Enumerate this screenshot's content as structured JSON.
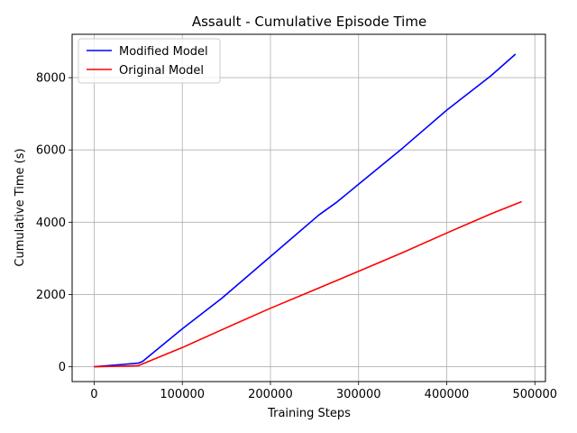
{
  "chart_data": {
    "type": "line",
    "title": "Assault - Cumulative Episode Time",
    "xlabel": "Training Steps",
    "ylabel": "Cumulative Time (s)",
    "xlim": [
      -25000,
      512000
    ],
    "ylim": [
      -410,
      9200
    ],
    "xticks": [
      0,
      100000,
      200000,
      300000,
      400000,
      500000
    ],
    "xtick_labels": [
      "0",
      "100000",
      "200000",
      "300000",
      "400000",
      "500000"
    ],
    "yticks": [
      0,
      2000,
      4000,
      6000,
      8000
    ],
    "ytick_labels": [
      "0",
      "2000",
      "4000",
      "6000",
      "8000"
    ],
    "grid": true,
    "legend_position": "top-left",
    "series": [
      {
        "name": "Modified Model",
        "color": "#0000ff",
        "x": [
          0,
          50000,
          55000,
          100000,
          145000,
          200000,
          255000,
          275000,
          300000,
          350000,
          400000,
          450000,
          478000
        ],
        "y": [
          0,
          100,
          150,
          1050,
          1900,
          3050,
          4200,
          4550,
          5050,
          6050,
          7100,
          8050,
          8650
        ]
      },
      {
        "name": "Original Model",
        "color": "#ff0000",
        "x": [
          0,
          50000,
          100000,
          150000,
          200000,
          250000,
          300000,
          350000,
          400000,
          450000,
          485000
        ],
        "y": [
          0,
          30,
          530,
          1080,
          1620,
          2130,
          2640,
          3160,
          3700,
          4230,
          4570
        ]
      }
    ]
  }
}
